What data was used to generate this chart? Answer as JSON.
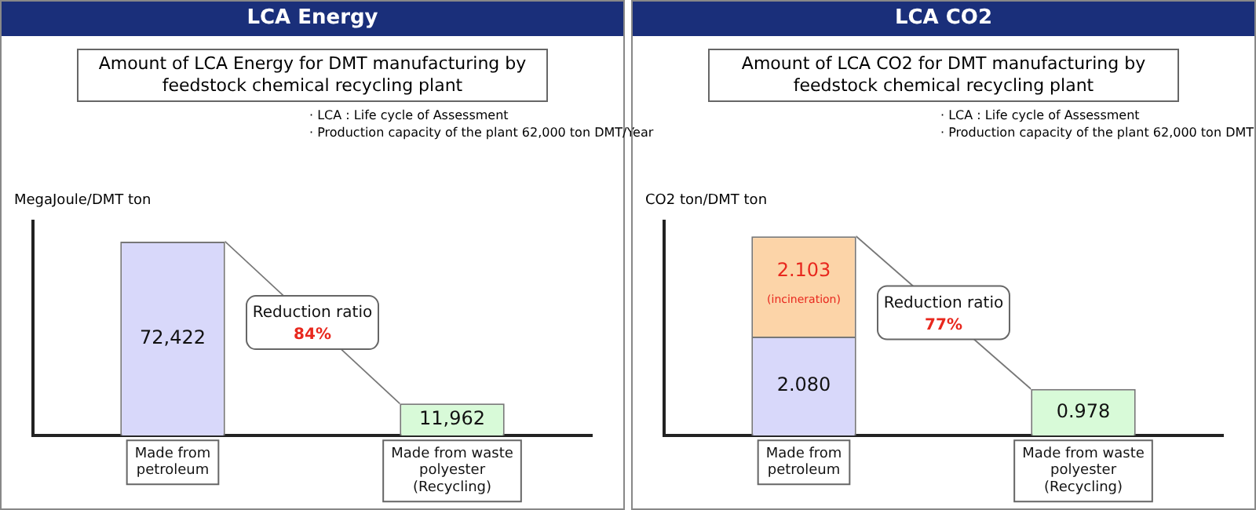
{
  "chart_data": [
    {
      "type": "bar",
      "subtitle": "LCA Energy",
      "title": "Amount of LCA Energy for DMT manufacturing by feedstock chemical recycling plant",
      "ylabel": "MegaJoule/DMT ton",
      "categories": [
        "Made from petroleum",
        "Made from waste polyester (Recycling)"
      ],
      "series": [
        {
          "colors": [
            "#d8d8fa",
            "#d8fad8"
          ],
          "values": [
            72422,
            11962
          ],
          "value_labels": [
            "72,422",
            "11,962"
          ]
        }
      ],
      "legend": false,
      "grid": false,
      "tick_labels": "x",
      "annotations": [
        "· LCA : Life cycle of Assessment",
        "· Production capacity of the plant 62,000 ton DMT/Year",
        "Reduction ratio",
        "84%"
      ]
    },
    {
      "type": "bar",
      "subtitle": "LCA CO2",
      "title": "Amount of LCA CO2 for DMT manufacturing by feedstock chemical recycling plant",
      "ylabel": "CO2 ton/DMT ton",
      "categories": [
        "Made from petroleum",
        "Made from waste polyester (Recycling)"
      ],
      "stacked": true,
      "series": [
        {
          "colors": [
            "#d8d8fa",
            "#d8fad8"
          ],
          "values": [
            2.08,
            0.978
          ],
          "value_labels": [
            "2.080",
            "0.978"
          ]
        },
        {
          "name": "(incineration)",
          "color": "#fcd4a8",
          "values": [
            2.103,
            null
          ],
          "value_labels": [
            "2.103",
            null
          ]
        }
      ],
      "legend": false,
      "grid": false,
      "tick_labels": "x",
      "annotations": [
        "· LCA : Life cycle of Assessment",
        "· Production capacity of the plant 62,000 ton DMT",
        "Reduction ratio",
        "77%"
      ]
    }
  ]
}
